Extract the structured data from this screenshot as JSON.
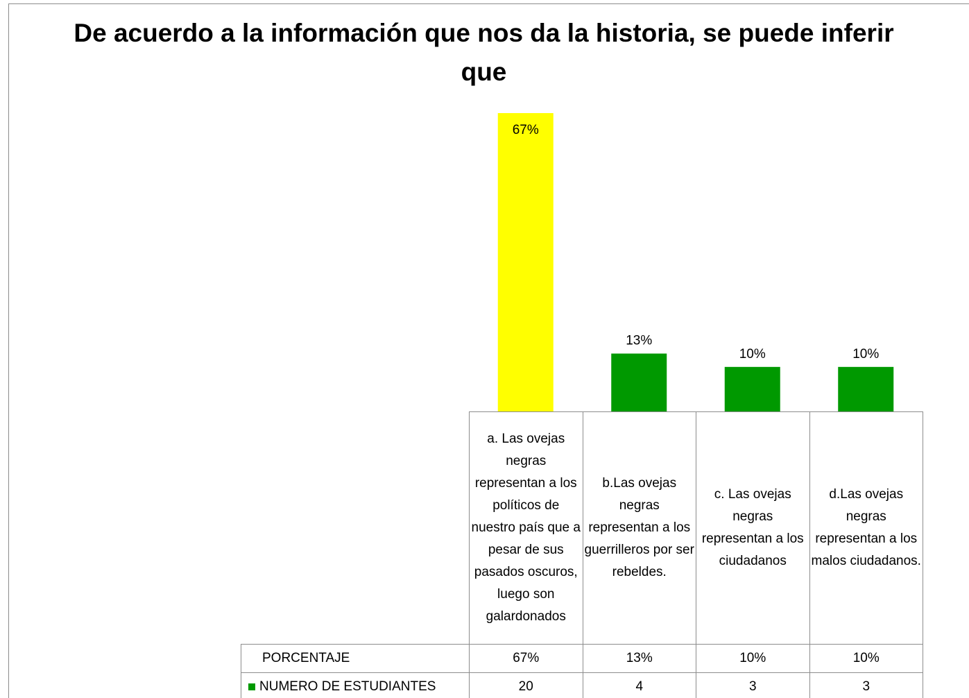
{
  "chart_data": {
    "type": "bar",
    "title": "De acuerdo a la información que nos da la historia, se puede inferir que",
    "categories": [
      "a. Las ovejas negras representan a los políticos de nuestro país que a pesar de sus pasados oscuros, luego son galardonados",
      "b.Las ovejas negras representan a los guerrilleros por ser rebeldes.",
      "c. Las ovejas negras representan a los ciudadanos",
      "d.Las ovejas negras representan a los malos ciudadanos."
    ],
    "series": [
      {
        "name": "PORCENTAJE",
        "values": [
          67,
          13,
          10,
          10
        ],
        "value_labels": [
          "67%",
          "13%",
          "10%",
          "10%"
        ],
        "colors": [
          "#ffff00",
          "#009900",
          "#009900",
          "#009900"
        ]
      },
      {
        "name": "NUMERO DE ESTUDIANTES",
        "values": [
          20,
          4,
          3,
          3
        ],
        "color": "#009900"
      }
    ]
  }
}
